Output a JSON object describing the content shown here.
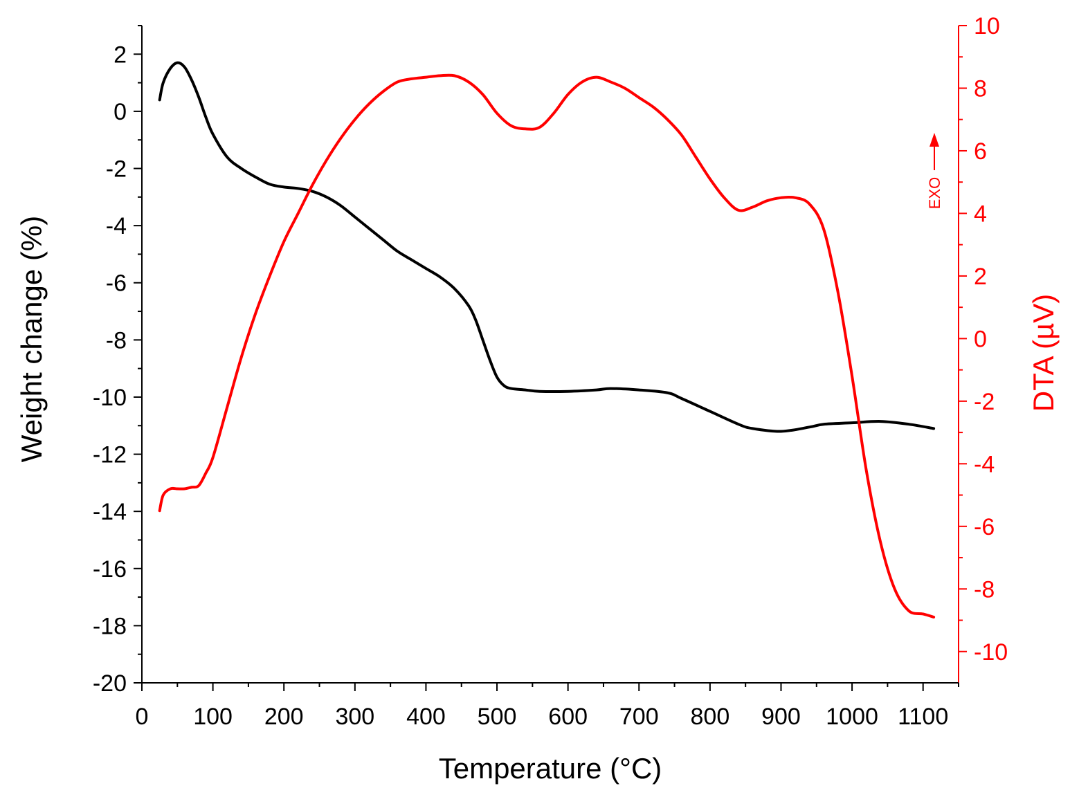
{
  "chart_data": {
    "type": "line",
    "xlabel": "Temperature (°C)",
    "ylabel_left": "Weight change (%)",
    "ylabel_right": "DTA (µV)",
    "exo_label": "EXO",
    "xlim": [
      0,
      1150
    ],
    "ylim_left": [
      -20,
      3
    ],
    "ylim_right": [
      -11,
      10
    ],
    "x_ticks": [
      0,
      100,
      200,
      300,
      400,
      500,
      600,
      700,
      800,
      900,
      1000,
      1100
    ],
    "y_left_ticks": [
      2,
      0,
      -2,
      -4,
      -6,
      -8,
      -10,
      -12,
      -14,
      -16,
      -18,
      -20
    ],
    "y_right_ticks": [
      10,
      8,
      6,
      4,
      2,
      0,
      -2,
      -4,
      -6,
      -8,
      -10
    ],
    "colors": {
      "weight": "#000000",
      "dta": "#ff0000",
      "axis": "#000000",
      "axis_right": "#ff0000"
    },
    "series": [
      {
        "name": "Weight change",
        "axis": "left",
        "x": [
          25,
          30,
          40,
          50,
          60,
          70,
          80,
          90,
          100,
          120,
          140,
          160,
          180,
          200,
          220,
          240,
          260,
          280,
          300,
          320,
          340,
          360,
          380,
          400,
          420,
          440,
          460,
          470,
          480,
          490,
          500,
          510,
          520,
          540,
          560,
          600,
          640,
          660,
          700,
          740,
          760,
          800,
          840,
          860,
          900,
          940,
          960,
          1000,
          1040,
          1080,
          1115
        ],
        "values": [
          0.4,
          1.0,
          1.5,
          1.7,
          1.55,
          1.1,
          0.5,
          -0.2,
          -0.8,
          -1.6,
          -2.0,
          -2.3,
          -2.55,
          -2.65,
          -2.7,
          -2.8,
          -3.0,
          -3.3,
          -3.7,
          -4.1,
          -4.5,
          -4.9,
          -5.2,
          -5.5,
          -5.8,
          -6.2,
          -6.8,
          -7.3,
          -8.0,
          -8.7,
          -9.3,
          -9.6,
          -9.7,
          -9.75,
          -9.8,
          -9.8,
          -9.75,
          -9.7,
          -9.75,
          -9.85,
          -10.05,
          -10.5,
          -10.95,
          -11.1,
          -11.2,
          -11.05,
          -10.95,
          -10.9,
          -10.85,
          -10.95,
          -11.1
        ]
      },
      {
        "name": "DTA",
        "axis": "right",
        "x": [
          25,
          30,
          40,
          50,
          60,
          70,
          80,
          90,
          100,
          120,
          140,
          160,
          180,
          200,
          220,
          240,
          260,
          280,
          300,
          320,
          340,
          360,
          380,
          400,
          420,
          440,
          460,
          480,
          500,
          520,
          540,
          560,
          580,
          600,
          620,
          640,
          660,
          680,
          700,
          720,
          740,
          760,
          780,
          800,
          820,
          840,
          860,
          880,
          900,
          920,
          940,
          960,
          980,
          1000,
          1020,
          1040,
          1060,
          1080,
          1100,
          1115
        ],
        "values": [
          -5.5,
          -5.0,
          -4.8,
          -4.8,
          -4.8,
          -4.75,
          -4.7,
          -4.3,
          -3.8,
          -2.2,
          -0.6,
          0.8,
          2.0,
          3.1,
          4.0,
          4.9,
          5.7,
          6.4,
          7.0,
          7.5,
          7.9,
          8.2,
          8.3,
          8.35,
          8.4,
          8.4,
          8.2,
          7.8,
          7.2,
          6.8,
          6.7,
          6.75,
          7.2,
          7.8,
          8.2,
          8.35,
          8.2,
          8.0,
          7.7,
          7.4,
          7.0,
          6.5,
          5.8,
          5.1,
          4.5,
          4.1,
          4.2,
          4.4,
          4.5,
          4.5,
          4.3,
          3.5,
          1.5,
          -1.2,
          -4.2,
          -6.5,
          -8.0,
          -8.7,
          -8.8,
          -8.9
        ]
      }
    ]
  }
}
